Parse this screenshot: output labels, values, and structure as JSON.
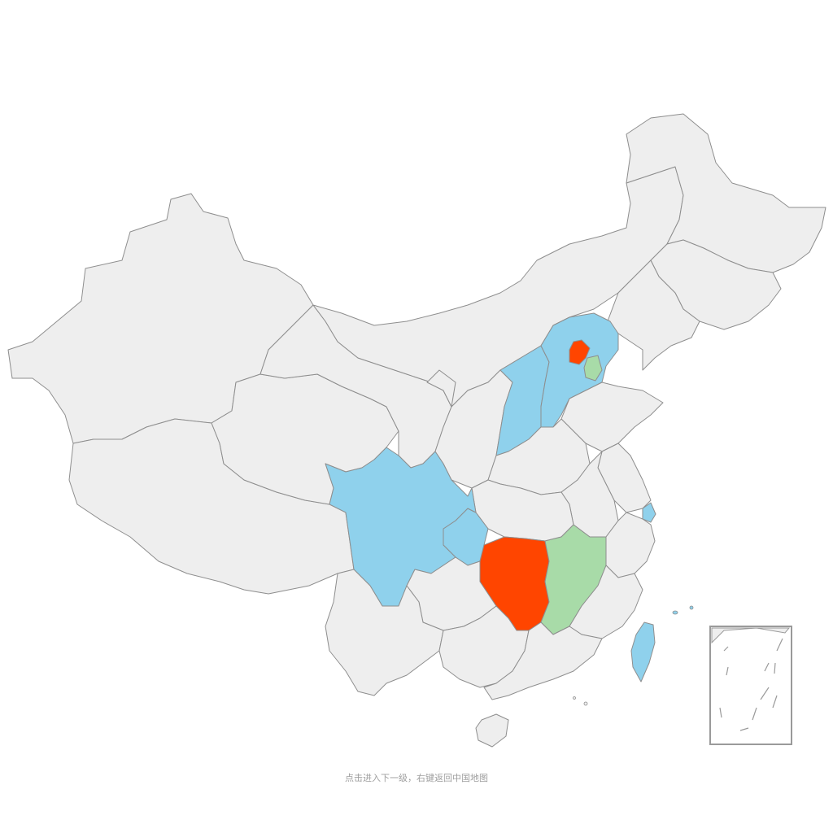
{
  "hint_text": "点击进入下一级，右键返回中国地图",
  "colors": {
    "default_fill": "#eeeeee",
    "border": "#8e8e8e",
    "high": "#ff4500",
    "medium": "#8fd1ec",
    "low": "#a8dba8"
  },
  "legend_levels": [
    "high",
    "medium",
    "low"
  ],
  "regions": [
    {
      "key": "xinjiang",
      "level": "default"
    },
    {
      "key": "xizang",
      "level": "default"
    },
    {
      "key": "qinghai",
      "level": "default"
    },
    {
      "key": "gansu",
      "level": "default"
    },
    {
      "key": "neimenggu",
      "level": "default"
    },
    {
      "key": "heilongjiang",
      "level": "default"
    },
    {
      "key": "jilin",
      "level": "default"
    },
    {
      "key": "liaoning",
      "level": "default"
    },
    {
      "key": "ningxia",
      "level": "default"
    },
    {
      "key": "shaanxi",
      "level": "default"
    },
    {
      "key": "shanxi",
      "level": "medium"
    },
    {
      "key": "hebei",
      "level": "medium"
    },
    {
      "key": "beijing",
      "level": "high"
    },
    {
      "key": "tianjin",
      "level": "low"
    },
    {
      "key": "shandong",
      "level": "default"
    },
    {
      "key": "henan",
      "level": "default"
    },
    {
      "key": "jiangsu",
      "level": "default"
    },
    {
      "key": "anhui",
      "level": "default"
    },
    {
      "key": "shanghai",
      "level": "medium"
    },
    {
      "key": "zhejiang",
      "level": "default"
    },
    {
      "key": "hubei",
      "level": "default"
    },
    {
      "key": "sichuan",
      "level": "medium"
    },
    {
      "key": "chongqing",
      "level": "medium"
    },
    {
      "key": "hunan",
      "level": "high"
    },
    {
      "key": "jiangxi",
      "level": "low"
    },
    {
      "key": "fujian",
      "level": "default"
    },
    {
      "key": "taiwan",
      "level": "medium"
    },
    {
      "key": "guizhou",
      "level": "default"
    },
    {
      "key": "yunnan",
      "level": "default"
    },
    {
      "key": "guangxi",
      "level": "default"
    },
    {
      "key": "guangdong",
      "level": "default"
    },
    {
      "key": "hainan",
      "level": "default"
    }
  ]
}
